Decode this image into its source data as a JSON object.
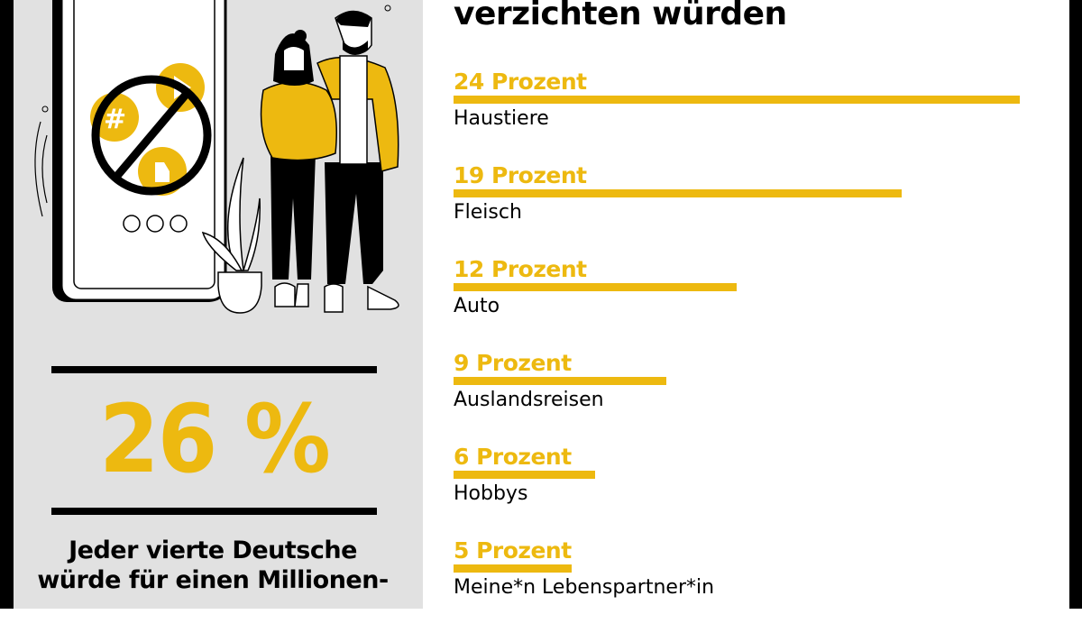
{
  "colors": {
    "accent": "#edb910",
    "panel": "#e1e1e1",
    "text": "#000000"
  },
  "left_panel": {
    "big_stat": "26 %",
    "stat_text": "Jeder vierte Deutsche\nwürde für einen Millionen-"
  },
  "chart_data": {
    "type": "bar",
    "orientation": "horizontal",
    "title": "verzichten würden",
    "categories": [
      "Haustiere",
      "Fleisch",
      "Auto",
      "Auslandsreisen",
      "Hobbys",
      "Meine*n Lebenspartner*in"
    ],
    "values": [
      24,
      19,
      12,
      9,
      6,
      5
    ],
    "value_labels": [
      "24 Prozent",
      "19 Prozent",
      "12 Prozent",
      "9 Prozent",
      "6 Prozent",
      "5 Prozent"
    ],
    "unit": "Prozent",
    "grid": false
  }
}
